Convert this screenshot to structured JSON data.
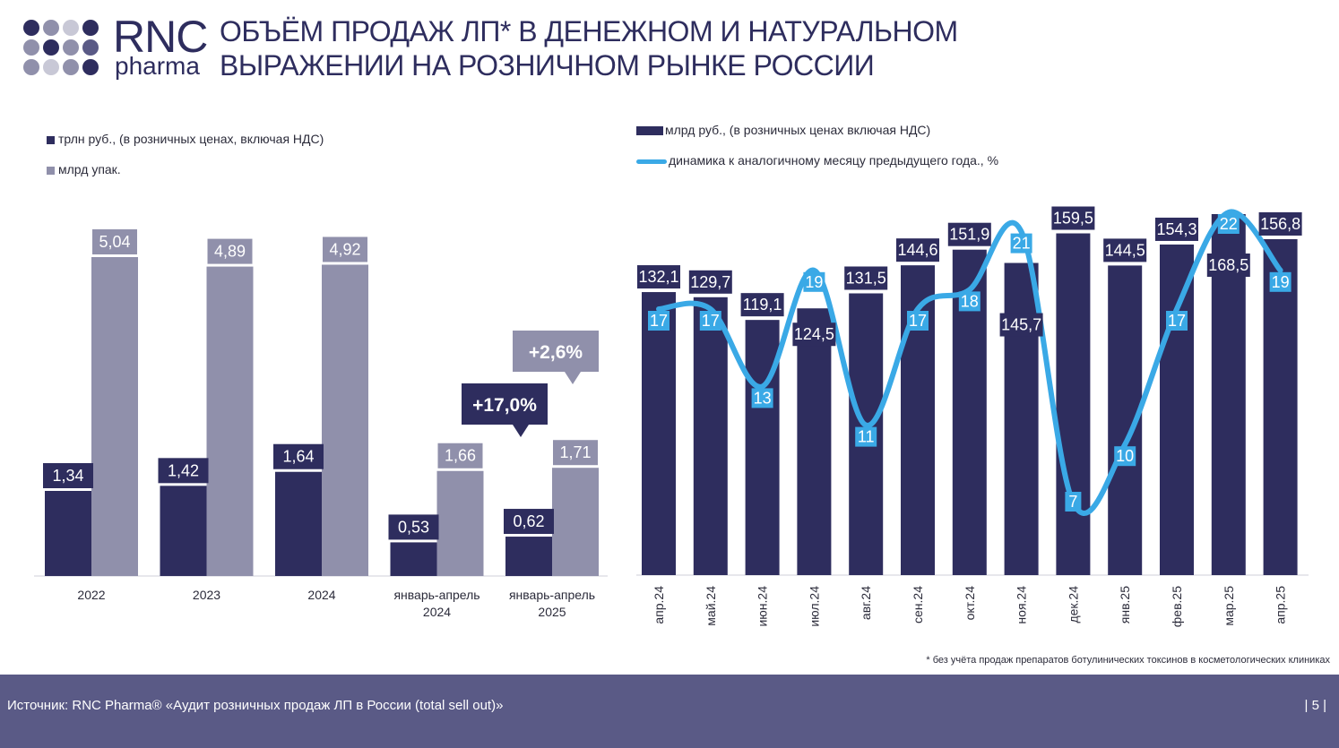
{
  "header": {
    "logo_text_top": "RNC",
    "logo_text_bottom": "pharma",
    "title_line1": "ОБЪЁМ ПРОДАЖ ЛП* В ДЕНЕЖНОМ И НАТУРАЛЬНОМ",
    "title_line2": "ВЫРАЖЕНИИ НА РОЗНИЧНОМ РЫНКЕ РОССИИ"
  },
  "colors": {
    "navy": "#2e2d5e",
    "grey_bar": "#9090ab",
    "line_blue": "#3aa9e6",
    "footer_bg": "#5a5a86",
    "text_dark": "#2b2b3a"
  },
  "chart_data": [
    {
      "type": "bar",
      "categories": [
        "2022",
        "2023",
        "2024",
        "январь-апрель\n2024",
        "январь-апрель\n2025"
      ],
      "series": [
        {
          "name": "трлн руб., (в розничных ценах, включая НДС)",
          "values": [
            1.34,
            1.42,
            1.64,
            0.53,
            0.62
          ],
          "labels": [
            "1,34",
            "1,42",
            "1,64",
            "0,53",
            "0,62"
          ]
        },
        {
          "name": "млрд упак.",
          "values": [
            5.04,
            4.89,
            4.92,
            1.66,
            1.71
          ],
          "labels": [
            "5,04",
            "4,89",
            "4,92",
            "1,66",
            "1,71"
          ]
        }
      ],
      "annotations": [
        {
          "text": "+17,0%",
          "series": 0,
          "points_to_category": 4
        },
        {
          "text": "+2,6%",
          "series": 1,
          "points_to_category": 4
        }
      ]
    },
    {
      "type": "bar",
      "categories": [
        "апр.24",
        "май.24",
        "июн.24",
        "июл.24",
        "авг.24",
        "сен.24",
        "окт.24",
        "ноя.24",
        "дек.24",
        "янв.25",
        "фев.25",
        "мар.25",
        "апр.25"
      ],
      "series": [
        {
          "name": "млрд руб., (в розничных ценах включая НДС)",
          "type": "bar",
          "values": [
            132.1,
            129.7,
            119.1,
            124.5,
            131.5,
            144.6,
            151.9,
            145.7,
            159.5,
            144.5,
            154.3,
            168.5,
            156.8
          ],
          "labels": [
            "132,1",
            "129,7",
            "119,1",
            "124,5",
            "131,5",
            "144,6",
            "151,9",
            "145,7",
            "159,5",
            "144,5",
            "154,3",
            "168,5",
            "156,8"
          ]
        },
        {
          "name": "динамика к аналогичному месяцу предыдущего года., %",
          "type": "line",
          "values": [
            17,
            17,
            13,
            19,
            11,
            17,
            18,
            21,
            7,
            10,
            17,
            22,
            19
          ],
          "labels": [
            "17",
            "17",
            "13",
            "19",
            "11",
            "17",
            "18",
            "21",
            "7",
            "10",
            "17",
            "22",
            "19"
          ]
        }
      ]
    }
  ],
  "footnote": "* без учёта продаж препаратов ботулинических токсинов в косметологических клиниках",
  "footer": {
    "source": "Источник: RNC Pharma® «Аудит розничных продаж ЛП в России (total sell out)»",
    "page": "| 5 |"
  }
}
